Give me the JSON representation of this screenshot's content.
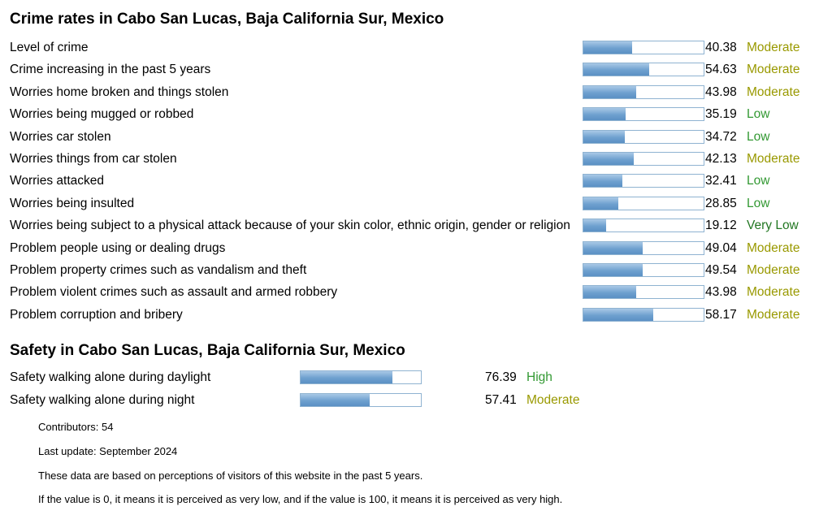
{
  "crime": {
    "title": "Crime rates in Cabo San Lucas, Baja California Sur, Mexico",
    "rows": [
      {
        "label": "Level of crime",
        "value": "40.38",
        "score": 40.38,
        "rating": "Moderate"
      },
      {
        "label": "Crime increasing in the past 5 years",
        "value": "54.63",
        "score": 54.63,
        "rating": "Moderate"
      },
      {
        "label": "Worries home broken and things stolen",
        "value": "43.98",
        "score": 43.98,
        "rating": "Moderate"
      },
      {
        "label": "Worries being mugged or robbed",
        "value": "35.19",
        "score": 35.19,
        "rating": "Low"
      },
      {
        "label": "Worries car stolen",
        "value": "34.72",
        "score": 34.72,
        "rating": "Low"
      },
      {
        "label": "Worries things from car stolen",
        "value": "42.13",
        "score": 42.13,
        "rating": "Moderate"
      },
      {
        "label": "Worries attacked",
        "value": "32.41",
        "score": 32.41,
        "rating": "Low"
      },
      {
        "label": "Worries being insulted",
        "value": "28.85",
        "score": 28.85,
        "rating": "Low"
      },
      {
        "label": "Worries being subject to a physical attack because of your skin color, ethnic origin, gender or religion",
        "value": "19.12",
        "score": 19.12,
        "rating": "Very Low"
      },
      {
        "label": "Problem people using or dealing drugs",
        "value": "49.04",
        "score": 49.04,
        "rating": "Moderate"
      },
      {
        "label": "Problem property crimes such as vandalism and theft",
        "value": "49.54",
        "score": 49.54,
        "rating": "Moderate"
      },
      {
        "label": "Problem violent crimes such as assault and armed robbery",
        "value": "43.98",
        "score": 43.98,
        "rating": "Moderate"
      },
      {
        "label": "Problem corruption and bribery",
        "value": "58.17",
        "score": 58.17,
        "rating": "Moderate"
      }
    ]
  },
  "safety": {
    "title": "Safety in Cabo San Lucas, Baja California Sur, Mexico",
    "rows": [
      {
        "label": "Safety walking alone during daylight",
        "value": "76.39",
        "score": 76.39,
        "rating": "High"
      },
      {
        "label": "Safety walking alone during night",
        "value": "57.41",
        "score": 57.41,
        "rating": "Moderate"
      }
    ]
  },
  "notes": {
    "contributors": "Contributors: 54",
    "last_update": "Last update: September 2024",
    "perception": "These data are based on perceptions of visitors of this website in the past 5 years.",
    "scale": "If the value is 0, it means it is perceived as very low, and if the value is 100, it means it is perceived as very high."
  },
  "colors": {
    "bar_border": "#8fb3d1",
    "bar_fill": "#6ea0cf",
    "moderate": "#999900",
    "low": "#339933",
    "very_low": "#227722",
    "high": "#339933"
  }
}
